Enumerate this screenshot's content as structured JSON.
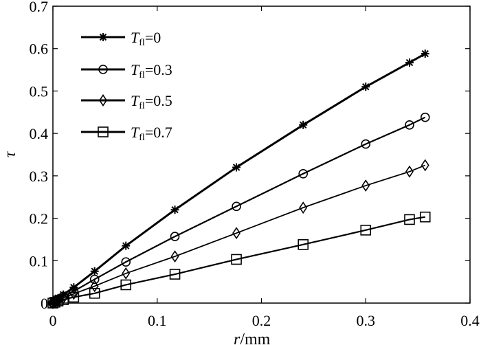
{
  "chart_data": {
    "type": "line",
    "xlabel": "r",
    "xlabel_unit": "/mm",
    "ylabel": "τ",
    "xlim": [
      0,
      0.4
    ],
    "ylim": [
      0,
      0.7
    ],
    "xticks": [
      0,
      0.1,
      0.2,
      0.3,
      0.4
    ],
    "xtick_labels": [
      "0",
      "0.1",
      "0.2",
      "0.3",
      "0.4"
    ],
    "yticks": [
      0,
      0.1,
      0.2,
      0.3,
      0.4,
      0.5,
      0.6,
      0.7
    ],
    "ytick_labels": [
      "0",
      "0.1",
      "0.2",
      "0.3",
      "0.4",
      "0.5",
      "0.6",
      "0.7"
    ],
    "grid": false,
    "legend_position": "top-left",
    "series": [
      {
        "name": "T_fl=0",
        "name_main": "T",
        "name_sub": "fl",
        "name_value": "=0",
        "marker": "star",
        "x": [
          0,
          0.002,
          0.005,
          0.01,
          0.02,
          0.04,
          0.07,
          0.117,
          0.176,
          0.24,
          0.3,
          0.342,
          0.357
        ],
        "y": [
          0,
          0.005,
          0.012,
          0.02,
          0.037,
          0.075,
          0.135,
          0.22,
          0.32,
          0.42,
          0.51,
          0.567,
          0.588
        ]
      },
      {
        "name": "T_fl=0.3",
        "name_main": "T",
        "name_sub": "fl",
        "name_value": "=0.3",
        "marker": "circle",
        "x": [
          0,
          0.002,
          0.005,
          0.01,
          0.02,
          0.04,
          0.07,
          0.117,
          0.176,
          0.24,
          0.3,
          0.342,
          0.357
        ],
        "y": [
          0,
          0.004,
          0.009,
          0.016,
          0.028,
          0.056,
          0.097,
          0.157,
          0.228,
          0.305,
          0.375,
          0.42,
          0.438
        ]
      },
      {
        "name": "T_fl=0.5",
        "name_main": "T",
        "name_sub": "fl",
        "name_value": "=0.5",
        "marker": "diamond",
        "x": [
          0,
          0.002,
          0.005,
          0.01,
          0.02,
          0.04,
          0.07,
          0.117,
          0.176,
          0.24,
          0.3,
          0.342,
          0.357
        ],
        "y": [
          0,
          0.003,
          0.007,
          0.012,
          0.022,
          0.04,
          0.07,
          0.11,
          0.165,
          0.225,
          0.277,
          0.31,
          0.325
        ]
      },
      {
        "name": "T_fl=0.7",
        "name_main": "T",
        "name_sub": "fl",
        "name_value": "=0.7",
        "marker": "square",
        "x": [
          0,
          0.002,
          0.005,
          0.01,
          0.02,
          0.04,
          0.07,
          0.117,
          0.176,
          0.24,
          0.3,
          0.342,
          0.357
        ],
        "y": [
          0,
          0.002,
          0.005,
          0.008,
          0.014,
          0.023,
          0.043,
          0.068,
          0.103,
          0.138,
          0.172,
          0.197,
          0.203
        ]
      }
    ]
  }
}
